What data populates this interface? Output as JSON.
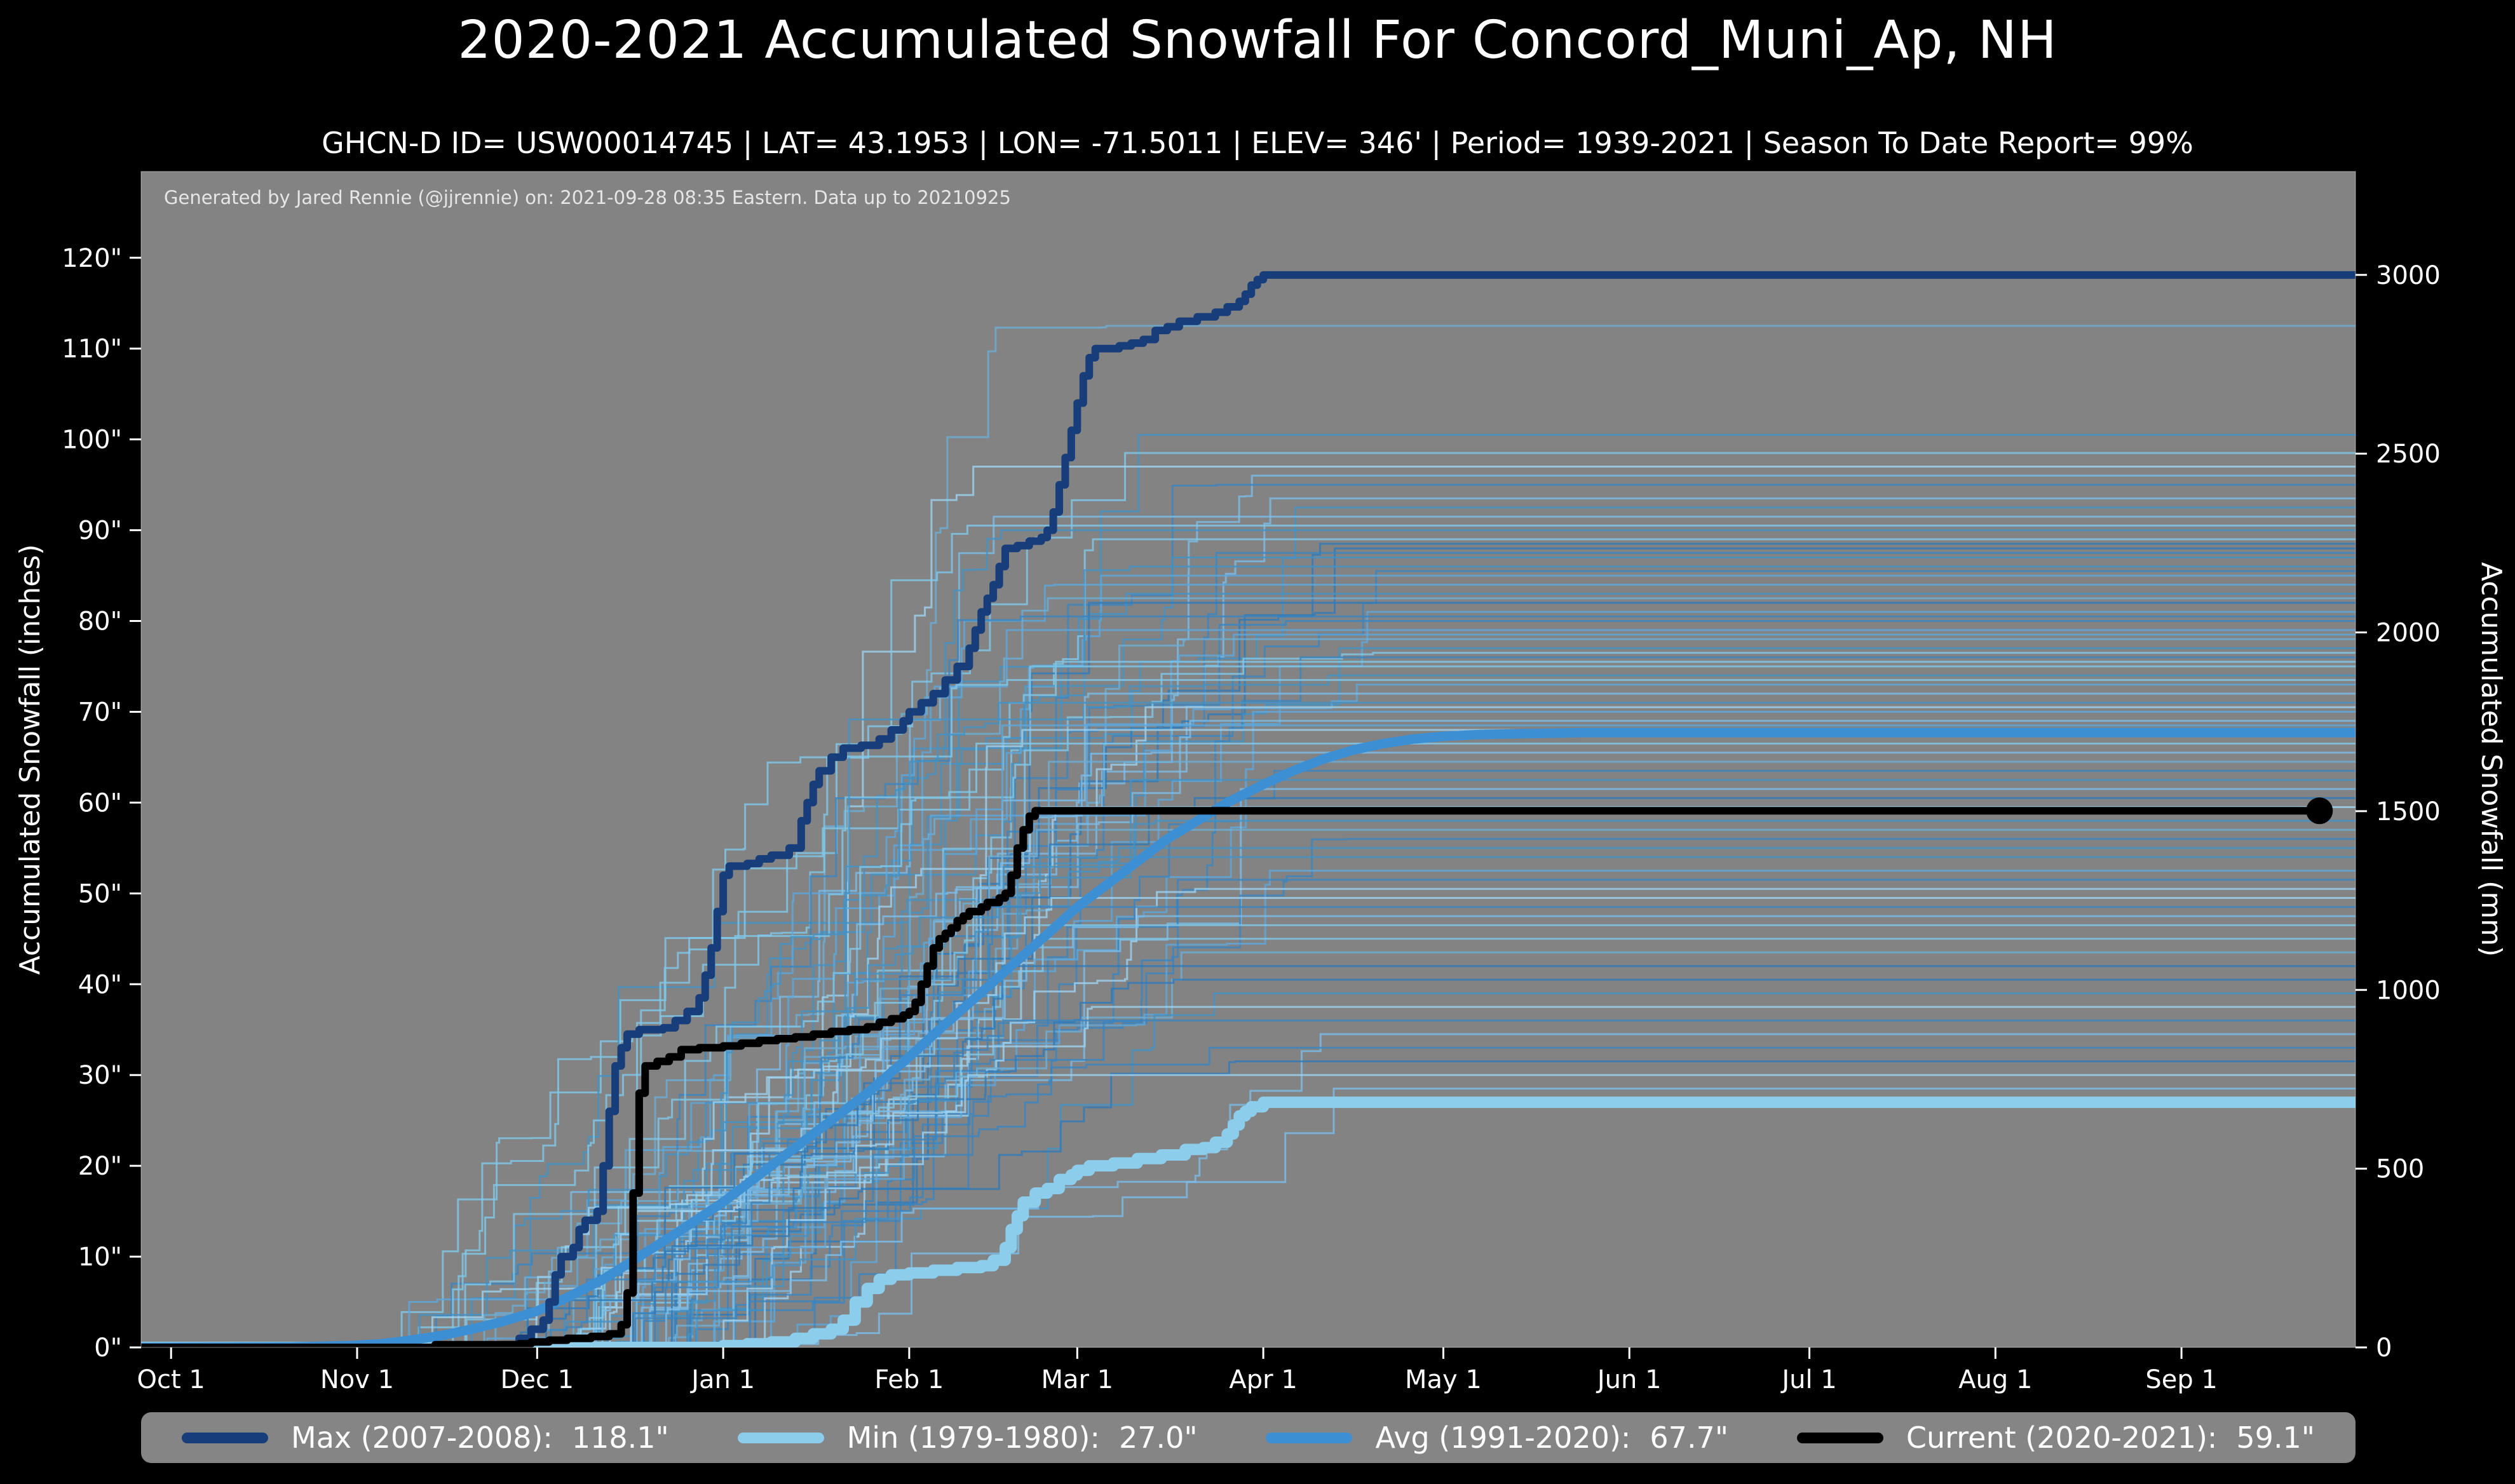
{
  "title": "2020-2021 Accumulated Snowfall For Concord_Muni_Ap, NH",
  "subtitle": "GHCN-D ID= USW00014745 | LAT= 43.1953 | LON= -71.5011 | ELEV= 346' | Period= 1939-2021 | Season To Date Report= 99%",
  "annotation": "Generated by Jared Rennie (@jjrennie) on: 2021-09-28 08:35 Eastern. Data up to 20210925",
  "colors": {
    "page_bg": "#000000",
    "plot_bg": "#838383",
    "legend_bg": "#858585",
    "text": "#ffffff",
    "annotation_text": "#e6e6e6"
  },
  "legend": {
    "items": [
      {
        "label": "Max (2007-2008):",
        "value": "118.1\""
      },
      {
        "label": "Min (1979-1980):",
        "value": "27.0\""
      },
      {
        "label": "Avg (1991-2020):",
        "value": "67.7\""
      },
      {
        "label": "Current (2020-2021):",
        "value": "59.1\""
      }
    ]
  },
  "chart_data": {
    "type": "line",
    "title": "2020-2021 Accumulated Snowfall For Concord_Muni_Ap, NH",
    "ylabel_left": "Accumulated Snowfall (inches)",
    "ylabel_right": "Accumulated Snowfall (mm)",
    "x_domain_days": [
      -5,
      364
    ],
    "y_domain_inches": [
      0,
      129.5
    ],
    "mm_per_inch": 25.4,
    "grid": false,
    "legend_position": "bottom",
    "x_ticks": {
      "days": [
        0,
        31,
        61,
        92,
        123,
        151,
        182,
        212,
        243,
        273,
        304,
        335
      ],
      "labels": [
        "Oct 1",
        "Nov 1",
        "Dec 1",
        "Jan 1",
        "Feb 1",
        "Mar 1",
        "Apr 1",
        "May 1",
        "Jun 1",
        "Jul 1",
        "Aug 1",
        "Sep 1"
      ]
    },
    "y_ticks_left": {
      "values": [
        0,
        10,
        20,
        30,
        40,
        50,
        60,
        70,
        80,
        90,
        100,
        110,
        120
      ],
      "labels": [
        "0\"",
        "10\"",
        "20\"",
        "30\"",
        "40\"",
        "50\"",
        "60\"",
        "70\"",
        "80\"",
        "90\"",
        "100\"",
        "110\"",
        "120\""
      ]
    },
    "y_ticks_right": {
      "values_mm": [
        0,
        500,
        1000,
        1500,
        2000,
        2500,
        3000
      ],
      "labels": [
        "0",
        "500",
        "1000",
        "1500",
        "2000",
        "2500",
        "3000"
      ]
    },
    "series": [
      {
        "id": "max",
        "name": "Max (2007-2008)",
        "final_inches": 118.1,
        "color": "#173d7a",
        "width": 12,
        "style": "step",
        "marker_end": false,
        "z": 3,
        "points": [
          [
            -5,
            0
          ],
          [
            40,
            0
          ],
          [
            55,
            0.3
          ],
          [
            58,
            1
          ],
          [
            60,
            2
          ],
          [
            62,
            3
          ],
          [
            63,
            5
          ],
          [
            64,
            8
          ],
          [
            65,
            10
          ],
          [
            67,
            11
          ],
          [
            68,
            13
          ],
          [
            69,
            14
          ],
          [
            71,
            15
          ],
          [
            72,
            20
          ],
          [
            73,
            26
          ],
          [
            74,
            31
          ],
          [
            75,
            33
          ],
          [
            76,
            34.5
          ],
          [
            78,
            35
          ],
          [
            82,
            35.2
          ],
          [
            84,
            36
          ],
          [
            86,
            37
          ],
          [
            88,
            38.5
          ],
          [
            89,
            41
          ],
          [
            90,
            44
          ],
          [
            91,
            48
          ],
          [
            92,
            52
          ],
          [
            93,
            53
          ],
          [
            96,
            53.3
          ],
          [
            98,
            53.8
          ],
          [
            100,
            54.2
          ],
          [
            103,
            55
          ],
          [
            105,
            58
          ],
          [
            106,
            60
          ],
          [
            107,
            62
          ],
          [
            108,
            63.5
          ],
          [
            110,
            65
          ],
          [
            112,
            66
          ],
          [
            115,
            66.3
          ],
          [
            118,
            67
          ],
          [
            120,
            68
          ],
          [
            122,
            69
          ],
          [
            123,
            70
          ],
          [
            125,
            71
          ],
          [
            127,
            72
          ],
          [
            129,
            73.5
          ],
          [
            131,
            75
          ],
          [
            133,
            77
          ],
          [
            134,
            79
          ],
          [
            135,
            81
          ],
          [
            136,
            82.5
          ],
          [
            137,
            84
          ],
          [
            138,
            86
          ],
          [
            139,
            88
          ],
          [
            141,
            88.3
          ],
          [
            143,
            88.8
          ],
          [
            145,
            89.2
          ],
          [
            146,
            90
          ],
          [
            147,
            92
          ],
          [
            148,
            95
          ],
          [
            149,
            98
          ],
          [
            150,
            101
          ],
          [
            151,
            104
          ],
          [
            152,
            107
          ],
          [
            153,
            109
          ],
          [
            154,
            110
          ],
          [
            158,
            110.3
          ],
          [
            160,
            110.6
          ],
          [
            162,
            111
          ],
          [
            164,
            112
          ],
          [
            166,
            112.4
          ],
          [
            168,
            113
          ],
          [
            171,
            113.5
          ],
          [
            174,
            114
          ],
          [
            176,
            114.6
          ],
          [
            178,
            115.2
          ],
          [
            179,
            116
          ],
          [
            180,
            117
          ],
          [
            181,
            117.6
          ],
          [
            182,
            118.1
          ],
          [
            364,
            118.1
          ]
        ]
      },
      {
        "id": "min",
        "name": "Min (1979-1980)",
        "final_inches": 27.0,
        "color": "#8ccdec",
        "width": 18,
        "style": "step",
        "marker_end": false,
        "z": 1,
        "points": [
          [
            -5,
            0
          ],
          [
            88,
            0
          ],
          [
            92,
            0.2
          ],
          [
            96,
            0.4
          ],
          [
            100,
            0.6
          ],
          [
            104,
            1
          ],
          [
            107,
            1.5
          ],
          [
            110,
            2
          ],
          [
            112,
            3
          ],
          [
            114,
            5
          ],
          [
            116,
            6.5
          ],
          [
            118,
            7.5
          ],
          [
            120,
            8
          ],
          [
            123,
            8.2
          ],
          [
            127,
            8.5
          ],
          [
            131,
            8.8
          ],
          [
            135,
            9
          ],
          [
            137,
            9.6
          ],
          [
            139,
            11
          ],
          [
            140,
            13
          ],
          [
            141,
            14.5
          ],
          [
            142,
            16
          ],
          [
            144,
            17
          ],
          [
            146,
            17.5
          ],
          [
            148,
            18.5
          ],
          [
            150,
            19
          ],
          [
            151,
            19.5
          ],
          [
            153,
            20
          ],
          [
            157,
            20.3
          ],
          [
            161,
            20.8
          ],
          [
            165,
            21.2
          ],
          [
            169,
            21.8
          ],
          [
            172,
            22
          ],
          [
            174,
            22.6
          ],
          [
            176,
            23.5
          ],
          [
            177,
            24.5
          ],
          [
            178,
            25.5
          ],
          [
            179,
            26
          ],
          [
            180,
            26.5
          ],
          [
            182,
            27
          ],
          [
            364,
            27
          ]
        ]
      },
      {
        "id": "avg",
        "name": "Avg (1991-2020)",
        "final_inches": 67.7,
        "color": "#3d8fd4",
        "width": 15,
        "style": "smooth",
        "marker_end": false,
        "z": 2,
        "points": [
          [
            -5,
            0
          ],
          [
            20,
            0.05
          ],
          [
            30,
            0.2
          ],
          [
            35,
            0.4
          ],
          [
            40,
            0.8
          ],
          [
            45,
            1.3
          ],
          [
            50,
            2
          ],
          [
            55,
            2.8
          ],
          [
            61,
            4
          ],
          [
            66,
            5.5
          ],
          [
            72,
            7.5
          ],
          [
            78,
            10
          ],
          [
            84,
            12.5
          ],
          [
            92,
            16
          ],
          [
            98,
            19
          ],
          [
            104,
            22
          ],
          [
            110,
            25
          ],
          [
            116,
            28
          ],
          [
            123,
            32
          ],
          [
            128,
            35
          ],
          [
            134,
            38.5
          ],
          [
            140,
            42
          ],
          [
            146,
            45.5
          ],
          [
            151,
            48.5
          ],
          [
            156,
            51
          ],
          [
            161,
            53.5
          ],
          [
            166,
            56
          ],
          [
            171,
            58
          ],
          [
            176,
            60
          ],
          [
            182,
            62
          ],
          [
            187,
            63.5
          ],
          [
            192,
            64.8
          ],
          [
            197,
            65.8
          ],
          [
            202,
            66.5
          ],
          [
            207,
            67
          ],
          [
            212,
            67.3
          ],
          [
            218,
            67.5
          ],
          [
            226,
            67.6
          ],
          [
            235,
            67.7
          ],
          [
            364,
            67.7
          ]
        ]
      },
      {
        "id": "current",
        "name": "Current (2020-2021)",
        "final_inches": 59.1,
        "color": "#000000",
        "width": 12,
        "style": "step",
        "marker_end": true,
        "z": 4,
        "points": [
          [
            -5,
            0
          ],
          [
            40,
            0
          ],
          [
            44,
            0.3
          ],
          [
            58,
            0.4
          ],
          [
            60,
            0.6
          ],
          [
            63,
            0.8
          ],
          [
            66,
            1
          ],
          [
            70,
            1.2
          ],
          [
            73,
            1.5
          ],
          [
            75,
            2.5
          ],
          [
            76,
            6
          ],
          [
            77,
            17
          ],
          [
            78,
            28
          ],
          [
            79,
            31
          ],
          [
            81,
            31.5
          ],
          [
            83,
            32
          ],
          [
            85,
            32.8
          ],
          [
            88,
            33
          ],
          [
            92,
            33.2
          ],
          [
            95,
            33.5
          ],
          [
            98,
            33.8
          ],
          [
            101,
            34
          ],
          [
            104,
            34.2
          ],
          [
            107,
            34.5
          ],
          [
            110,
            34.8
          ],
          [
            113,
            35
          ],
          [
            116,
            35.3
          ],
          [
            118,
            35.8
          ],
          [
            120,
            36.2
          ],
          [
            122,
            36.6
          ],
          [
            123,
            37
          ],
          [
            124,
            38
          ],
          [
            125,
            40
          ],
          [
            126,
            42
          ],
          [
            127,
            44
          ],
          [
            128,
            45
          ],
          [
            129,
            45.6
          ],
          [
            130,
            46.2
          ],
          [
            131,
            47
          ],
          [
            132,
            47.5
          ],
          [
            133,
            48
          ],
          [
            135,
            48.5
          ],
          [
            136,
            49
          ],
          [
            138,
            49.5
          ],
          [
            139,
            50
          ],
          [
            140,
            52
          ],
          [
            141,
            55
          ],
          [
            142,
            57
          ],
          [
            143,
            58.5
          ],
          [
            144,
            59.1
          ],
          [
            358,
            59.1
          ]
        ]
      }
    ],
    "background_seasons": {
      "seed": 11,
      "width": 3,
      "opacity": 0.8,
      "start_day_range": [
        35,
        90
      ],
      "end_day_range": [
        135,
        205
      ],
      "steps_range": [
        10,
        30
      ],
      "palette": [
        "#9ed2f0",
        "#7cbde8",
        "#5ca8dc",
        "#4292c6",
        "#2f7ab8",
        "#7fc8e8",
        "#6baed6",
        "#3a85c0"
      ],
      "final_totals_inches": [
        112.5,
        100.5,
        98.5,
        97,
        96,
        95,
        93.5,
        92.5,
        91.5,
        90.5,
        90,
        89,
        88.5,
        88,
        87.5,
        87,
        86,
        85.5,
        85,
        84,
        83,
        82.5,
        82,
        81,
        80.5,
        80,
        79,
        78.5,
        78,
        77,
        76.5,
        76,
        75.5,
        75,
        74,
        73.5,
        73,
        72,
        71,
        70.5,
        70,
        69,
        68.5,
        68,
        66.5,
        65.5,
        64.5,
        63.5,
        62.5,
        61.5,
        60.5,
        59.5,
        58,
        57,
        56,
        55,
        54,
        52.5,
        51.5,
        50.5,
        49.5,
        48.5,
        47.5,
        46.5,
        45,
        43.5,
        42,
        40.5,
        39,
        37.5,
        36,
        34.5,
        33,
        31.5,
        30,
        28.5
      ]
    }
  }
}
